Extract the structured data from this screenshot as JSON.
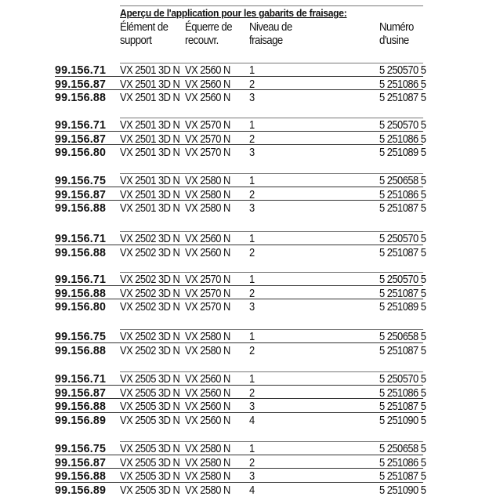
{
  "title": "Aperçu de l'application pour les gabarits de fraisage:",
  "headers": {
    "element": [
      "Élément de",
      "support"
    ],
    "equerre": [
      "Équerre de",
      "recouvr."
    ],
    "niveau": [
      "Niveau de",
      "fraisage"
    ],
    "numero": [
      "Numéro",
      "d'usine"
    ]
  },
  "groups": [
    [
      [
        "99.156.71",
        "VX 2501 3D N",
        "VX 2560 N",
        "1",
        "5 250570 5"
      ],
      [
        "99.156.87",
        "VX 2501 3D N",
        "VX 2560 N",
        "2",
        "5 251086 5"
      ],
      [
        "99.156.88",
        "VX 2501 3D N",
        "VX 2560 N",
        "3",
        "5 251087 5"
      ]
    ],
    [
      [
        "99.156.71",
        "VX 2501 3D N",
        "VX 2570 N",
        "1",
        "5 250570 5"
      ],
      [
        "99.156.87",
        "VX 2501 3D N",
        "VX 2570 N",
        "2",
        "5 251086 5"
      ],
      [
        "99.156.80",
        "VX 2501 3D N",
        "VX 2570 N",
        "3",
        "5 251089 5"
      ]
    ],
    [
      [
        "99.156.75",
        "VX 2501 3D N",
        "VX 2580 N",
        "1",
        "5 250658 5"
      ],
      [
        "99.156.87",
        "VX 2501 3D N",
        "VX 2580 N",
        "2",
        "5 251086 5"
      ],
      [
        "99.156.88",
        "VX 2501 3D N",
        "VX 2580 N",
        "3",
        "5 251087 5"
      ]
    ],
    [
      [
        "99.156.71",
        "VX 2502 3D N",
        "VX 2560 N",
        "1",
        "5 250570 5"
      ],
      [
        "99.156.88",
        "VX 2502 3D N",
        "VX 2560 N",
        "2",
        "5 251087 5"
      ]
    ],
    [
      [
        "99.156.71",
        "VX 2502 3D N",
        "VX 2570 N",
        "1",
        "5 250570 5"
      ],
      [
        "99.156.88",
        "VX 2502 3D N",
        "VX 2570 N",
        "2",
        "5 251087 5"
      ],
      [
        "99.156.80",
        "VX 2502 3D N",
        "VX 2570 N",
        "3",
        "5 251089 5"
      ]
    ],
    [
      [
        "99.156.75",
        "VX 2502 3D N",
        "VX 2580 N",
        "1",
        "5 250658 5"
      ],
      [
        "99.156.88",
        "VX 2502 3D N",
        "VX 2580 N",
        "2",
        "5 251087 5"
      ]
    ],
    [
      [
        "99.156.71",
        "VX 2505 3D N",
        "VX 2560 N",
        "1",
        "5 250570 5"
      ],
      [
        "99.156.87",
        "VX 2505 3D N",
        "VX 2560 N",
        "2",
        "5 251086 5"
      ],
      [
        "99.156.88",
        "VX 2505 3D N",
        "VX 2560 N",
        "3",
        "5 251087 5"
      ],
      [
        "99.156.89",
        "VX 2505 3D N",
        "VX 2560 N",
        "4",
        "5 251090 5"
      ]
    ],
    [
      [
        "99.156.75",
        "VX 2505 3D N",
        "VX 2580 N",
        "1",
        "5 250658 5"
      ],
      [
        "99.156.87",
        "VX 2505 3D N",
        "VX 2580 N",
        "2",
        "5 251086 5"
      ],
      [
        "99.156.88",
        "VX 2505 3D N",
        "VX 2580 N",
        "3",
        "5 251087 5"
      ],
      [
        "99.156.89",
        "VX 2505 3D N",
        "VX 2580 N",
        "4",
        "5 251090 5"
      ]
    ]
  ]
}
